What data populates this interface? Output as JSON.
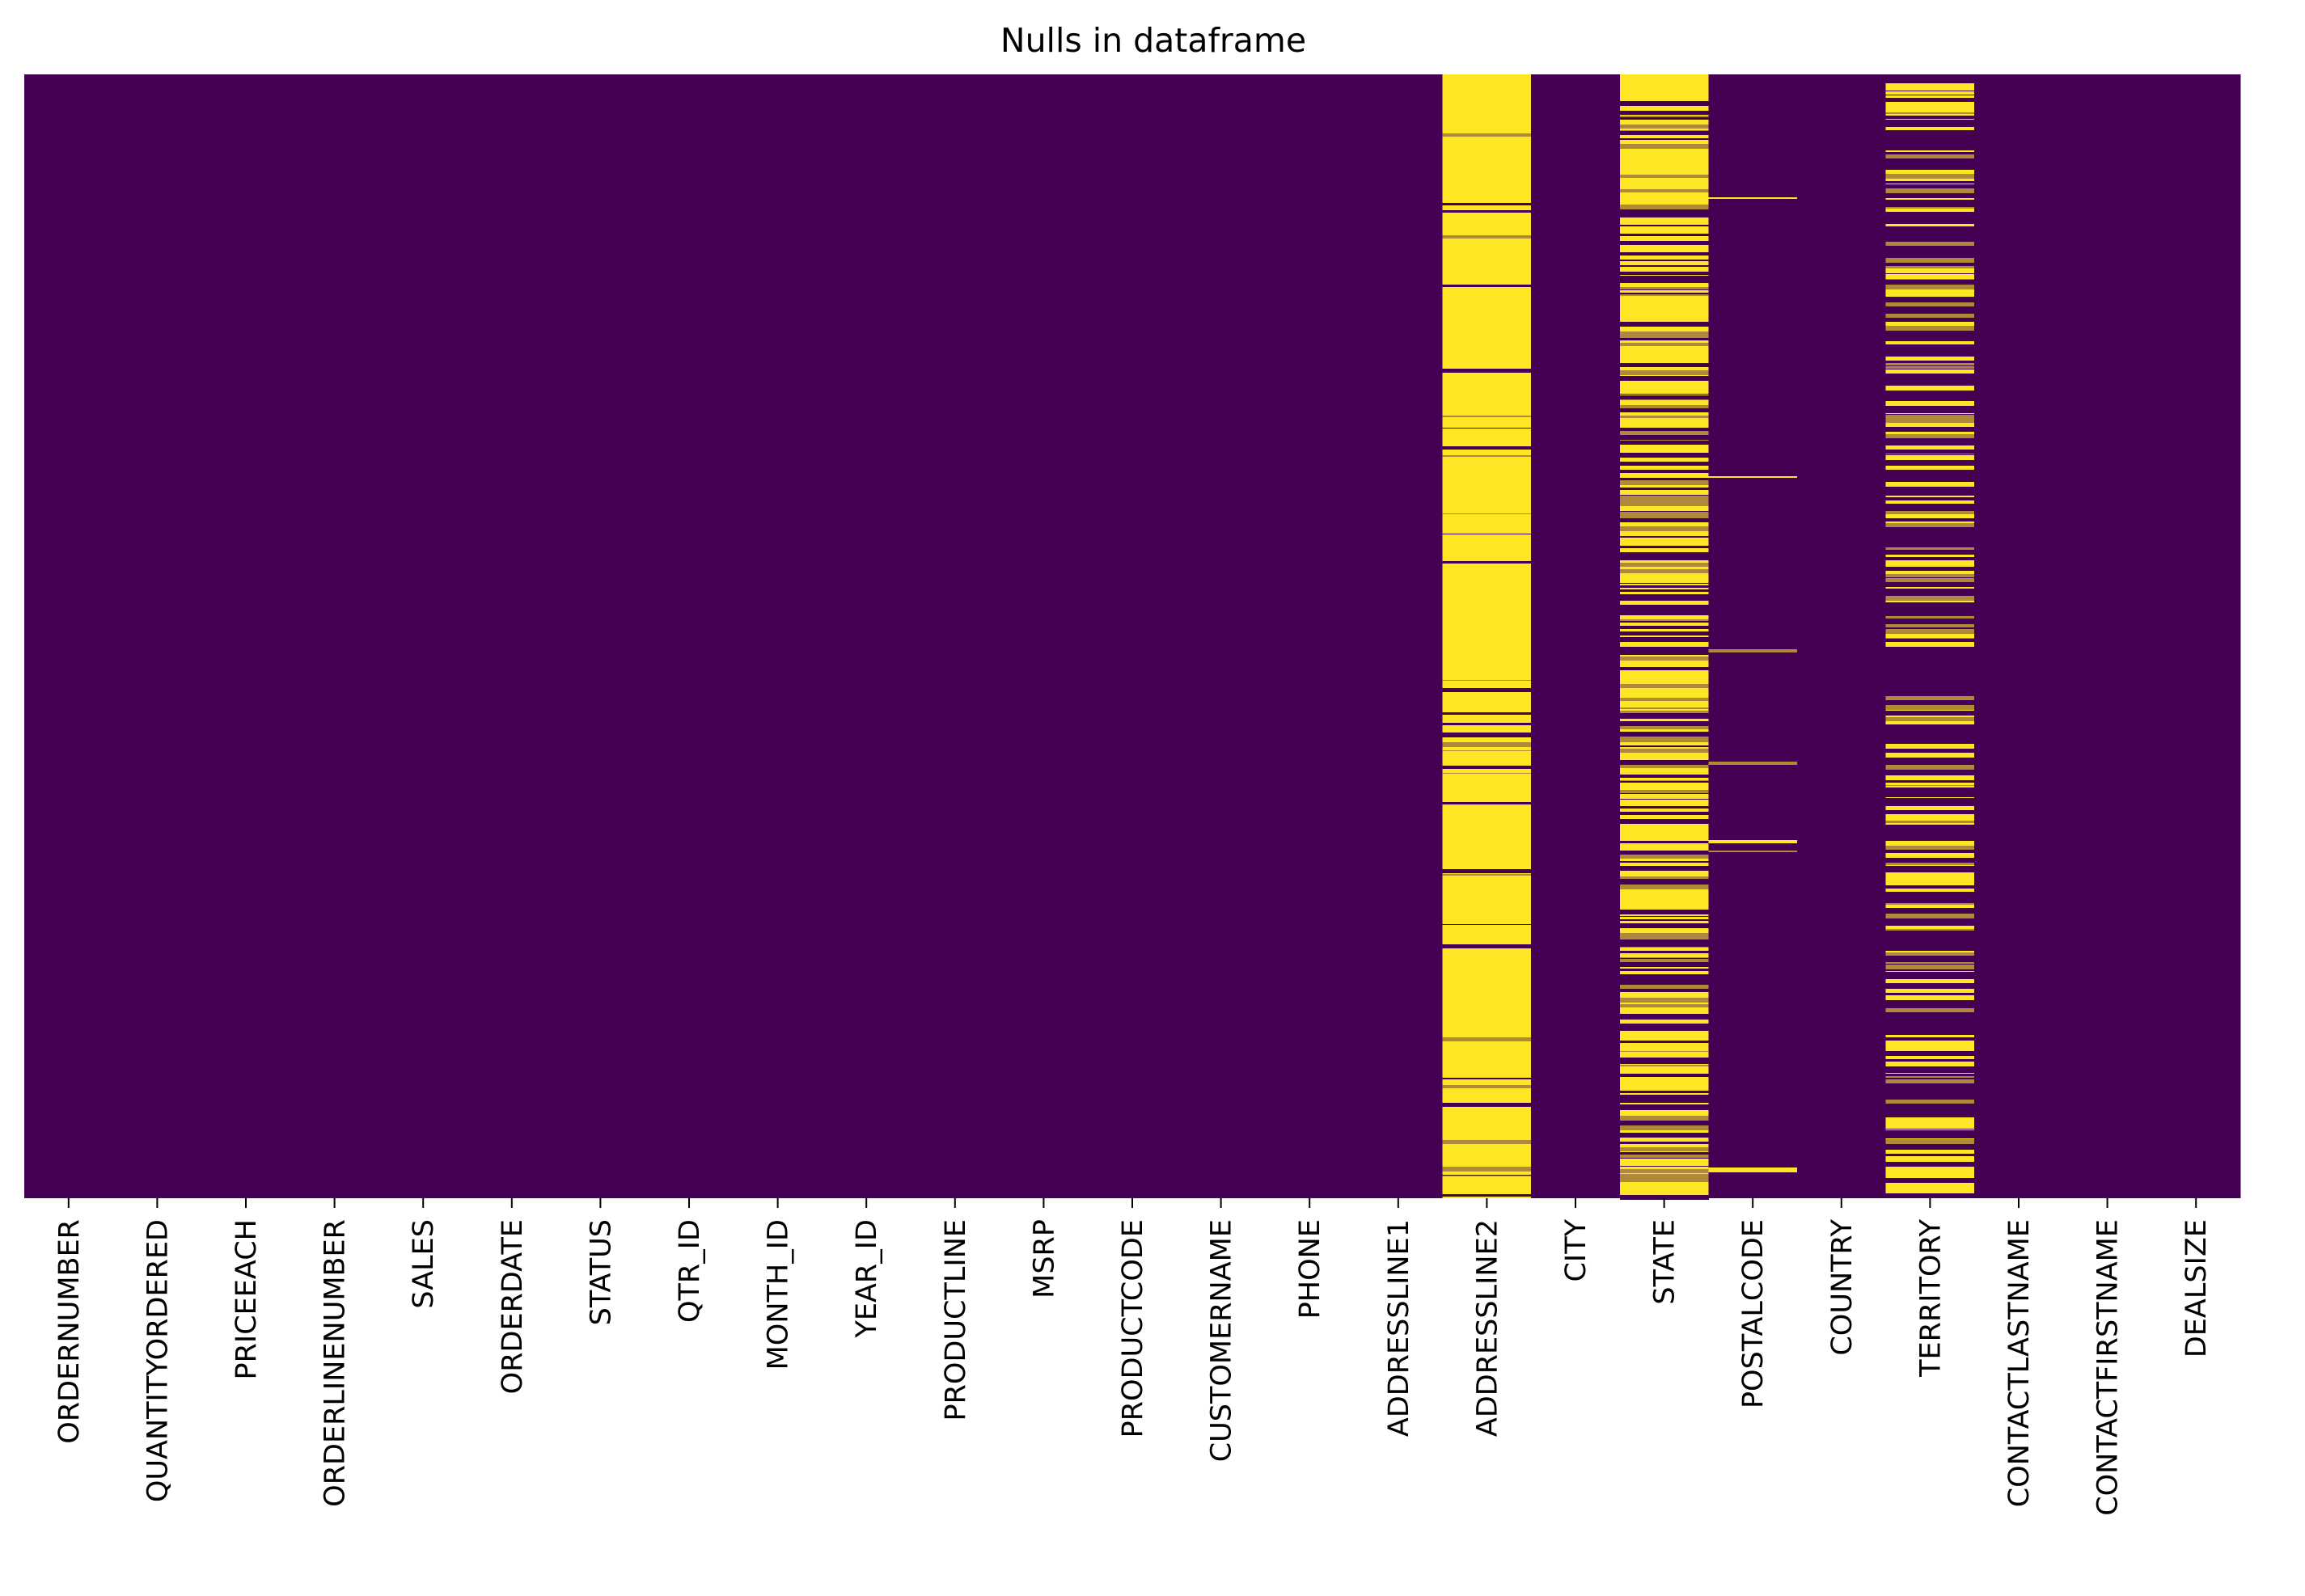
{
  "chart_data": {
    "type": "heatmap",
    "title": "Nulls in dataframe",
    "xlabel": "",
    "ylabel": "",
    "colormap": "viridis",
    "colors": {
      "not_null": "#440154",
      "null": "#fde725",
      "mixed": "#b08a3b"
    },
    "colorbar": false,
    "y_tick_labels_shown": false,
    "columns": [
      "ORDERNUMBER",
      "QUANTITYORDERED",
      "PRICEEACH",
      "ORDERLINENUMBER",
      "SALES",
      "ORDERDATE",
      "STATUS",
      "QTR_ID",
      "MONTH_ID",
      "YEAR_ID",
      "PRODUCTLINE",
      "MSRP",
      "PRODUCTCODE",
      "CUSTOMERNAME",
      "PHONE",
      "ADDRESSLINE1",
      "ADDRESSLINE2",
      "CITY",
      "STATE",
      "POSTALCODE",
      "COUNTRY",
      "TERRITORY",
      "CONTACTLASTNAME",
      "CONTACTFIRSTNAME",
      "DEALSIZE"
    ],
    "null_fraction": [
      0,
      0,
      0,
      0,
      0,
      0,
      0,
      0,
      0,
      0,
      0,
      0,
      0,
      0,
      0,
      0,
      0.89,
      0,
      0.53,
      0.03,
      0,
      0.38,
      0,
      0,
      0
    ]
  }
}
